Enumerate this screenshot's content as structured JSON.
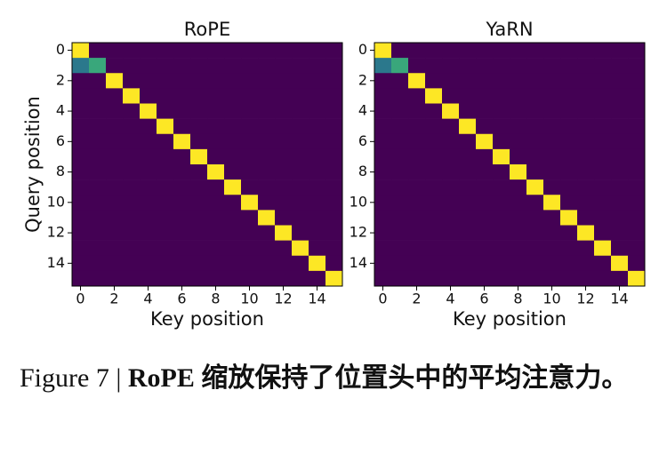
{
  "chart_data": [
    {
      "type": "heatmap",
      "title": "RoPE",
      "xlabel": "Key position",
      "ylabel": "Query position",
      "colormap": "viridis",
      "xlim": [
        -0.5,
        15.5
      ],
      "ylim": [
        15.5,
        -0.5
      ],
      "xticks": [
        0,
        2,
        4,
        6,
        8,
        10,
        12,
        14
      ],
      "yticks": [
        0,
        2,
        4,
        6,
        8,
        10,
        12,
        14
      ],
      "values": [
        [
          1,
          0,
          0,
          0,
          0,
          0,
          0,
          0,
          0,
          0,
          0,
          0,
          0,
          0,
          0,
          0
        ],
        [
          0.4,
          0.6,
          0,
          0,
          0,
          0,
          0,
          0,
          0,
          0,
          0,
          0,
          0,
          0,
          0,
          0
        ],
        [
          0,
          0,
          1,
          0,
          0,
          0,
          0,
          0,
          0,
          0,
          0,
          0,
          0,
          0,
          0,
          0
        ],
        [
          0,
          0,
          0,
          1,
          0,
          0,
          0,
          0,
          0,
          0,
          0,
          0,
          0,
          0,
          0,
          0
        ],
        [
          0,
          0,
          0,
          0,
          1,
          0,
          0,
          0,
          0,
          0,
          0,
          0,
          0,
          0,
          0,
          0
        ],
        [
          0,
          0,
          0,
          0,
          0,
          1,
          0,
          0,
          0,
          0,
          0,
          0,
          0,
          0,
          0,
          0
        ],
        [
          0,
          0,
          0,
          0,
          0,
          0,
          1,
          0,
          0,
          0,
          0,
          0,
          0,
          0,
          0,
          0
        ],
        [
          0,
          0,
          0,
          0,
          0,
          0,
          0,
          1,
          0,
          0,
          0,
          0,
          0,
          0,
          0,
          0
        ],
        [
          0,
          0,
          0,
          0,
          0,
          0,
          0,
          0,
          1,
          0,
          0,
          0,
          0,
          0,
          0,
          0
        ],
        [
          0,
          0,
          0,
          0,
          0,
          0,
          0,
          0,
          0,
          1,
          0,
          0,
          0,
          0,
          0,
          0
        ],
        [
          0,
          0,
          0,
          0,
          0,
          0,
          0,
          0,
          0,
          0,
          1,
          0,
          0,
          0,
          0,
          0
        ],
        [
          0,
          0,
          0,
          0,
          0,
          0,
          0,
          0,
          0,
          0,
          0,
          1,
          0,
          0,
          0,
          0
        ],
        [
          0,
          0,
          0,
          0,
          0,
          0,
          0,
          0,
          0,
          0,
          0,
          0,
          1,
          0,
          0,
          0
        ],
        [
          0,
          0,
          0,
          0,
          0,
          0,
          0,
          0,
          0,
          0,
          0,
          0,
          0,
          1,
          0,
          0
        ],
        [
          0,
          0,
          0,
          0,
          0,
          0,
          0,
          0,
          0,
          0,
          0,
          0,
          0,
          0,
          1,
          0
        ],
        [
          0,
          0,
          0,
          0,
          0,
          0,
          0,
          0,
          0,
          0,
          0,
          0,
          0,
          0,
          0,
          1
        ]
      ]
    },
    {
      "type": "heatmap",
      "title": "YaRN",
      "xlabel": "Key position",
      "colormap": "viridis",
      "xlim": [
        -0.5,
        15.5
      ],
      "ylim": [
        15.5,
        -0.5
      ],
      "xticks": [
        0,
        2,
        4,
        6,
        8,
        10,
        12,
        14
      ],
      "yticks": [
        0,
        2,
        4,
        6,
        8,
        10,
        12,
        14
      ],
      "values": [
        [
          1,
          0,
          0,
          0,
          0,
          0,
          0,
          0,
          0,
          0,
          0,
          0,
          0,
          0,
          0,
          0
        ],
        [
          0.4,
          0.6,
          0,
          0,
          0,
          0,
          0,
          0,
          0,
          0,
          0,
          0,
          0,
          0,
          0,
          0
        ],
        [
          0,
          0,
          1,
          0,
          0,
          0,
          0,
          0,
          0,
          0,
          0,
          0,
          0,
          0,
          0,
          0
        ],
        [
          0,
          0,
          0,
          1,
          0,
          0,
          0,
          0,
          0,
          0,
          0,
          0,
          0,
          0,
          0,
          0
        ],
        [
          0,
          0,
          0,
          0,
          1,
          0,
          0,
          0,
          0,
          0,
          0,
          0,
          0,
          0,
          0,
          0
        ],
        [
          0,
          0,
          0,
          0,
          0,
          1,
          0,
          0,
          0,
          0,
          0,
          0,
          0,
          0,
          0,
          0
        ],
        [
          0,
          0,
          0,
          0,
          0,
          0,
          1,
          0,
          0,
          0,
          0,
          0,
          0,
          0,
          0,
          0
        ],
        [
          0,
          0,
          0,
          0,
          0,
          0,
          0,
          1,
          0,
          0,
          0,
          0,
          0,
          0,
          0,
          0
        ],
        [
          0,
          0,
          0,
          0,
          0,
          0,
          0,
          0,
          1,
          0,
          0,
          0,
          0,
          0,
          0,
          0
        ],
        [
          0,
          0,
          0,
          0,
          0,
          0,
          0,
          0,
          0,
          1,
          0,
          0,
          0,
          0,
          0,
          0
        ],
        [
          0,
          0,
          0,
          0,
          0,
          0,
          0,
          0,
          0,
          0,
          1,
          0,
          0,
          0,
          0,
          0
        ],
        [
          0,
          0,
          0,
          0,
          0,
          0,
          0,
          0,
          0,
          0,
          0,
          1,
          0,
          0,
          0,
          0
        ],
        [
          0,
          0,
          0,
          0,
          0,
          0,
          0,
          0,
          0,
          0,
          0,
          0,
          1,
          0,
          0,
          0
        ],
        [
          0,
          0,
          0,
          0,
          0,
          0,
          0,
          0,
          0,
          0,
          0,
          0,
          0,
          1,
          0,
          0
        ],
        [
          0,
          0,
          0,
          0,
          0,
          0,
          0,
          0,
          0,
          0,
          0,
          0,
          0,
          0,
          1,
          0
        ],
        [
          0,
          0,
          0,
          0,
          0,
          0,
          0,
          0,
          0,
          0,
          0,
          0,
          0,
          0,
          0,
          1
        ]
      ]
    }
  ],
  "caption": {
    "label": "Figure 7 |",
    "text": "RoPE 缩放保持了位置头中的平均注意力。"
  }
}
